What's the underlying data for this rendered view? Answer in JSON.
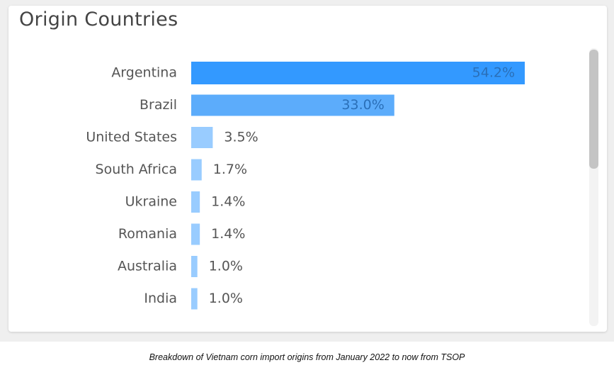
{
  "chart_data": {
    "type": "bar",
    "orientation": "horizontal",
    "title": "Origin Countries",
    "categories": [
      "Argentina",
      "Brazil",
      "United States",
      "South Africa",
      "Ukraine",
      "Romania",
      "Australia",
      "India"
    ],
    "values": [
      54.2,
      33.0,
      3.5,
      1.7,
      1.4,
      1.4,
      1.0,
      1.0
    ],
    "value_labels": [
      "54.2%",
      "33.0%",
      "3.5%",
      "1.7%",
      "1.4%",
      "1.4%",
      "1.0%",
      "1.0%"
    ],
    "colors": [
      "#3399ff",
      "#5cacfb",
      "#99ccff",
      "#99ccff",
      "#99ccff",
      "#99ccff",
      "#99ccff",
      "#99ccff"
    ]
  },
  "caption": "Breakdown of Vietnam corn import origins from January 2022 to now from TSOP"
}
